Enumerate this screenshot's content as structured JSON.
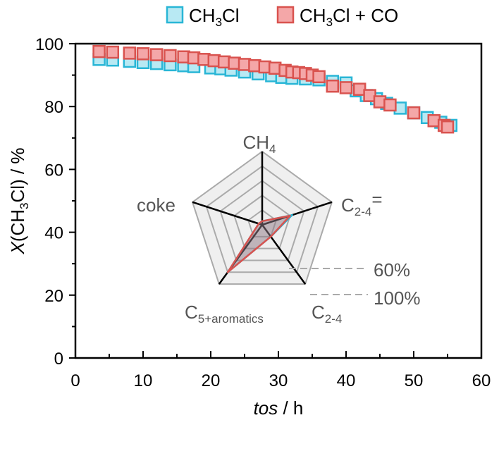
{
  "chart_data": {
    "type": "scatter",
    "xlabel": {
      "italic": "tos",
      "rest": " / h"
    },
    "ylabel": {
      "italic": "X",
      "main": "(CH",
      "sub": "3",
      "end": "Cl) / %"
    },
    "xlim": [
      0,
      60
    ],
    "ylim": [
      0,
      100
    ],
    "xticks": [
      "0",
      "10",
      "20",
      "30",
      "40",
      "50",
      "60"
    ],
    "yticks": [
      "0",
      "20",
      "40",
      "60",
      "80",
      "100"
    ],
    "legend_position": "top",
    "series": [
      {
        "name": {
          "main": "CH",
          "sub": "3",
          "end": "Cl"
        },
        "color": "#29b6d6",
        "fill": "#b8e9f3",
        "x": [
          3.5,
          5.5,
          8,
          10,
          12,
          14,
          16,
          17.5,
          20,
          21.5,
          23,
          25,
          27,
          29,
          30.5,
          32,
          34,
          36,
          38,
          40,
          41.5,
          43,
          44.5,
          46,
          48,
          50,
          52,
          54,
          55.5
        ],
        "y": [
          95,
          94.8,
          94.4,
          94,
          93.7,
          93.3,
          93,
          92.7,
          92.3,
          92,
          91.6,
          91,
          90.4,
          89.8,
          89.3,
          89,
          88.8,
          88.5,
          88,
          87.5,
          85,
          83.5,
          82.5,
          81,
          79.5,
          78,
          76.5,
          75,
          74
        ]
      },
      {
        "name": {
          "main": "CH",
          "sub": "3",
          "end": "Cl + CO"
        },
        "color": "#d9534f",
        "fill": "#f4a7a8",
        "x": [
          3.5,
          5.5,
          8,
          10,
          12,
          14,
          16,
          17.5,
          19,
          20.5,
          22,
          23.5,
          25,
          26.5,
          28,
          29.5,
          31,
          32,
          33,
          34,
          35,
          36,
          38,
          40,
          42,
          43.5,
          45,
          46.5,
          50,
          53,
          54.5,
          55
        ],
        "y": [
          97.5,
          97.3,
          97,
          96.8,
          96.5,
          96.2,
          95.8,
          95.5,
          95,
          94.6,
          94.2,
          93.8,
          93.4,
          93,
          92.6,
          92.2,
          91.5,
          91,
          90.8,
          90.5,
          90,
          89.5,
          86.5,
          86,
          85.5,
          83.5,
          81.5,
          80.5,
          78,
          75.5,
          74,
          73.5
        ]
      }
    ],
    "radar": {
      "axes": [
        {
          "main": "CH",
          "sub": "4",
          "end": ""
        },
        {
          "main": "C",
          "sub": "2-4",
          "end": "="
        },
        {
          "main": "C",
          "sub": "2-4",
          "end": ""
        },
        {
          "main": "C",
          "sub": "5+aromatics",
          "end": ""
        },
        {
          "main": "coke",
          "sub": "",
          "end": ""
        }
      ],
      "max": 100,
      "ring_labels": [
        {
          "value": 60,
          "text": "60%"
        },
        {
          "value": 100,
          "text": "100%"
        }
      ],
      "series": [
        {
          "color": "#29b6d6",
          "values": [
            5,
            43,
            20,
            80,
            5
          ]
        },
        {
          "color": "#d9534f",
          "values": [
            5,
            40,
            20,
            80,
            5
          ]
        }
      ]
    }
  }
}
